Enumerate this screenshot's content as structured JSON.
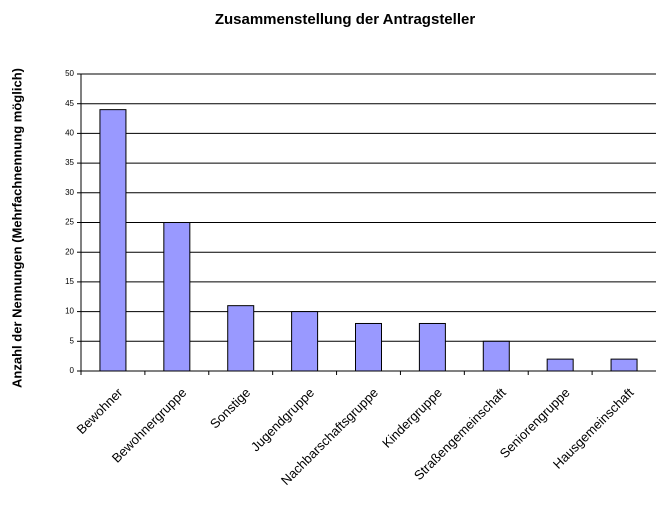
{
  "chart_data": {
    "type": "bar",
    "title": "Zusammenstellung der Antragsteller",
    "y_label": "Anzahl der Nennungen (Mehrfachnennung möglich)",
    "categories": [
      "Bewohner",
      "Bewohnergruppe",
      "Sonstige",
      "Jugendgruppe",
      "Nachbarschaftsgruppe",
      "Kindergruppe",
      "Straßengemeinschaft",
      "Seniorengruppe",
      "Hausgemeinschaft"
    ],
    "values": [
      44,
      25,
      11,
      10,
      8,
      8,
      5,
      2,
      2
    ],
    "color": "#9999ff",
    "ylim": [
      0,
      50
    ],
    "yticks": [
      0,
      5,
      10,
      15,
      20,
      25,
      30,
      35,
      40,
      45,
      50
    ],
    "grid": true
  }
}
